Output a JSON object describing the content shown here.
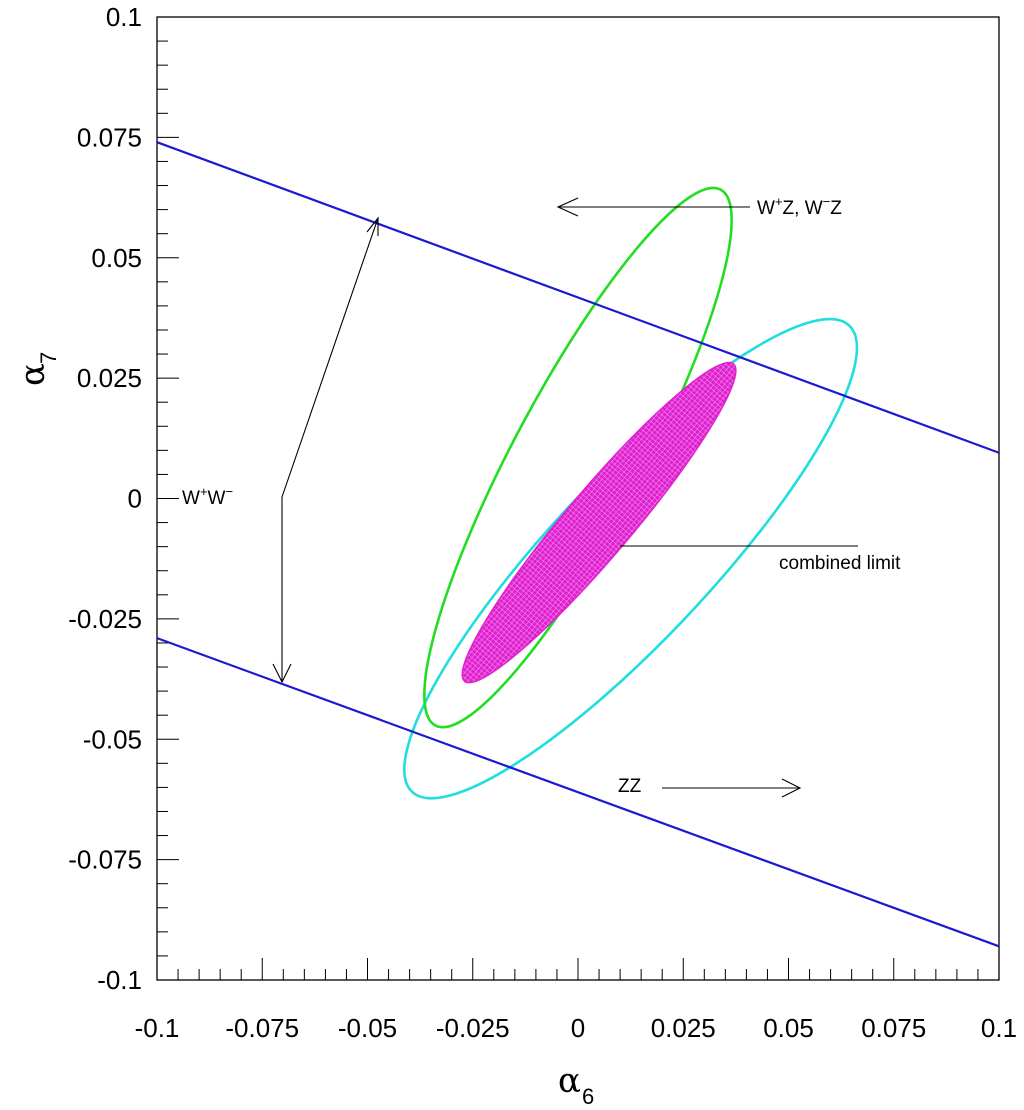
{
  "chart_data": {
    "type": "contour",
    "title": "",
    "xlabel": "α",
    "xlabel_sub": "6",
    "ylabel": "α",
    "ylabel_sub": "7",
    "xlim": [
      -0.1,
      0.1
    ],
    "ylim": [
      -0.1,
      0.1
    ],
    "x_ticks": [
      "-0.1",
      "-0.075",
      "-0.05",
      "-0.025",
      "0",
      "0.025",
      "0.05",
      "0.075",
      "0.1"
    ],
    "y_ticks": [
      "-0.1",
      "-0.075",
      "-0.05",
      "-0.025",
      "0",
      "0.025",
      "0.05",
      "0.075",
      "0.1"
    ],
    "grid": false,
    "lines": [
      {
        "color": "#1a1ad0",
        "points": [
          [
            -0.1,
            0.074
          ],
          [
            0.1,
            0.0095
          ]
        ]
      },
      {
        "color": "#1a1ad0",
        "points": [
          [
            -0.1,
            -0.029
          ],
          [
            0.1,
            -0.093
          ]
        ]
      }
    ],
    "ellipses": [
      {
        "color": "#22dd22",
        "center": [
          0.0,
          0.0085
        ],
        "extent_x": [
          -0.0345,
          0.0385
        ],
        "extent_y": [
          -0.047,
          0.065
        ],
        "fill": false
      },
      {
        "color": "#22dddd",
        "center": [
          0.0125,
          -0.0125
        ],
        "extent_x": [
          -0.041,
          0.0665
        ],
        "extent_y": [
          -0.0625,
          0.037
        ],
        "fill": false
      },
      {
        "color": "#e020d0",
        "center": [
          0.005,
          -0.005
        ],
        "extent_x": [
          -0.0275,
          0.0375
        ],
        "extent_y": [
          -0.0385,
          0.028
        ],
        "fill": true
      }
    ],
    "annotations": [
      {
        "text": "W⁺W⁻",
        "position": [
          -0.0965,
          0.0
        ]
      },
      {
        "text": "W⁺Z, W⁻Z",
        "position": [
          0.043,
          0.0585
        ]
      },
      {
        "text": "combined limit",
        "position": [
          0.048,
          -0.013
        ]
      },
      {
        "text": "ZZ",
        "position": [
          0.01,
          -0.0585
        ]
      }
    ]
  },
  "colors": {
    "ww_line": "#1a1ad0",
    "wz_ellipse": "#22dd22",
    "zz_ellipse": "#22dddd",
    "combined": "#e020d0"
  }
}
